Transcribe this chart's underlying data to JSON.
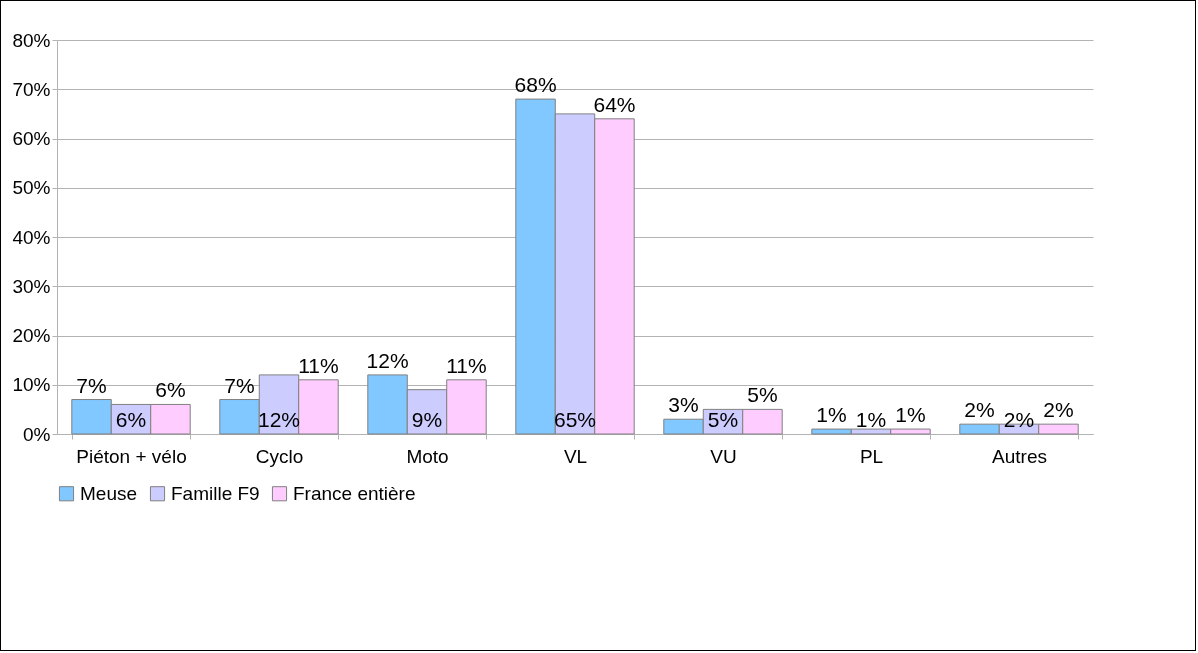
{
  "chart_data": {
    "type": "bar",
    "categories": [
      "Piéton + vélo",
      "Cyclo",
      "Moto",
      "VL",
      "VU",
      "PL",
      "Autres"
    ],
    "series": [
      {
        "name": "Meuse",
        "color": "#80c8ff",
        "values": [
          7,
          7,
          12,
          68,
          3,
          1,
          2
        ],
        "value_labels": [
          "7%",
          "7%",
          "12%",
          "68%",
          "3%",
          "1%",
          "2%"
        ]
      },
      {
        "name": "Famille F9",
        "color": "#ccccff",
        "values": [
          6,
          12,
          9,
          65,
          5,
          1,
          2
        ],
        "value_labels": [
          "6%",
          "12%",
          "9%",
          "65%",
          "5%",
          "1%",
          "2%"
        ]
      },
      {
        "name": "France entière",
        "color": "#ffccff",
        "values": [
          6,
          11,
          11,
          64,
          5,
          1,
          2
        ],
        "value_labels": [
          "6%",
          "11%",
          "11%",
          "64%",
          "5%",
          "1%",
          "2%"
        ]
      }
    ],
    "ylim": [
      0,
      80
    ],
    "yticks": [
      {
        "value": 0,
        "label": "0%"
      },
      {
        "value": 10,
        "label": "10%"
      },
      {
        "value": 20,
        "label": "20%"
      },
      {
        "value": 30,
        "label": "30%"
      },
      {
        "value": 40,
        "label": "40%"
      },
      {
        "value": 50,
        "label": "50%"
      },
      {
        "value": 60,
        "label": "60%"
      },
      {
        "value": 70,
        "label": "70%"
      },
      {
        "value": 80,
        "label": "80%"
      }
    ],
    "grid": "y",
    "legend": "bottom"
  }
}
